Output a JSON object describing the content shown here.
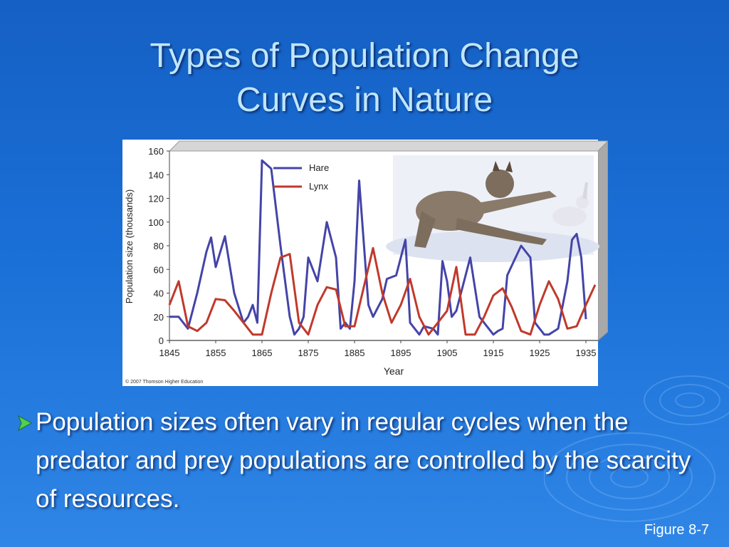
{
  "slide": {
    "title_line1": "Types of Population Change",
    "title_line2": "Curves in Nature",
    "bullet": "Population sizes often vary in regular cycles when the predator and prey populations are controlled by the scarcity of resources.",
    "figure_label": "Figure 8-7",
    "colors": {
      "background": "#1a6fd6",
      "title": "#bfe6ff",
      "bullet_arrow": "#4fd14f"
    }
  },
  "chart_data": {
    "type": "line",
    "xlabel": "Year",
    "ylabel": "Population size (thousands)",
    "xlim": [
      1845,
      1937
    ],
    "ylim": [
      0,
      160
    ],
    "x_ticks": [
      1845,
      1855,
      1865,
      1875,
      1885,
      1895,
      1905,
      1915,
      1925,
      1935
    ],
    "y_ticks": [
      0,
      20,
      40,
      60,
      80,
      100,
      120,
      140,
      160
    ],
    "legend_position": "top-left",
    "credit": "© 2007 Thomson Higher Education",
    "series": [
      {
        "name": "Hare",
        "color": "#4444a8",
        "x": [
          1845,
          1847,
          1849,
          1851,
          1853,
          1854,
          1855,
          1857,
          1859,
          1861,
          1862,
          1863,
          1864,
          1865,
          1867,
          1869,
          1871,
          1872,
          1873,
          1874,
          1875,
          1877,
          1879,
          1881,
          1882,
          1883,
          1884,
          1885,
          1886,
          1888,
          1889,
          1891,
          1892,
          1894,
          1896,
          1897,
          1899,
          1900,
          1902,
          1903,
          1904,
          1905,
          1906,
          1907,
          1909,
          1910,
          1912,
          1914,
          1915,
          1916,
          1917,
          1918,
          1921,
          1923,
          1924,
          1926,
          1927,
          1929,
          1931,
          1932,
          1933,
          1934,
          1935
        ],
        "values": [
          20,
          20,
          10,
          40,
          75,
          87,
          62,
          88,
          40,
          15,
          20,
          30,
          15,
          152,
          145,
          80,
          20,
          5,
          10,
          20,
          70,
          50,
          100,
          70,
          10,
          15,
          10,
          50,
          135,
          30,
          20,
          35,
          52,
          55,
          85,
          15,
          5,
          12,
          10,
          5,
          67,
          50,
          20,
          25,
          55,
          70,
          20,
          10,
          5,
          8,
          10,
          55,
          80,
          70,
          15,
          5,
          5,
          10,
          50,
          85,
          90,
          70,
          18
        ]
      },
      {
        "name": "Lynx",
        "color": "#c0392b",
        "x": [
          1845,
          1847,
          1849,
          1851,
          1853,
          1855,
          1857,
          1859,
          1861,
          1863,
          1865,
          1867,
          1869,
          1871,
          1873,
          1875,
          1877,
          1879,
          1881,
          1883,
          1885,
          1887,
          1889,
          1891,
          1893,
          1895,
          1897,
          1899,
          1901,
          1903,
          1905,
          1907,
          1909,
          1911,
          1913,
          1915,
          1917,
          1919,
          1921,
          1923,
          1925,
          1927,
          1929,
          1931,
          1933,
          1935,
          1937
        ],
        "values": [
          30,
          50,
          12,
          8,
          15,
          35,
          34,
          25,
          15,
          5,
          5,
          40,
          70,
          73,
          15,
          5,
          30,
          45,
          43,
          12,
          12,
          45,
          78,
          40,
          15,
          30,
          52,
          20,
          5,
          15,
          25,
          62,
          5,
          5,
          20,
          38,
          44,
          28,
          8,
          5,
          30,
          50,
          35,
          10,
          12,
          30,
          47
        ]
      }
    ]
  }
}
